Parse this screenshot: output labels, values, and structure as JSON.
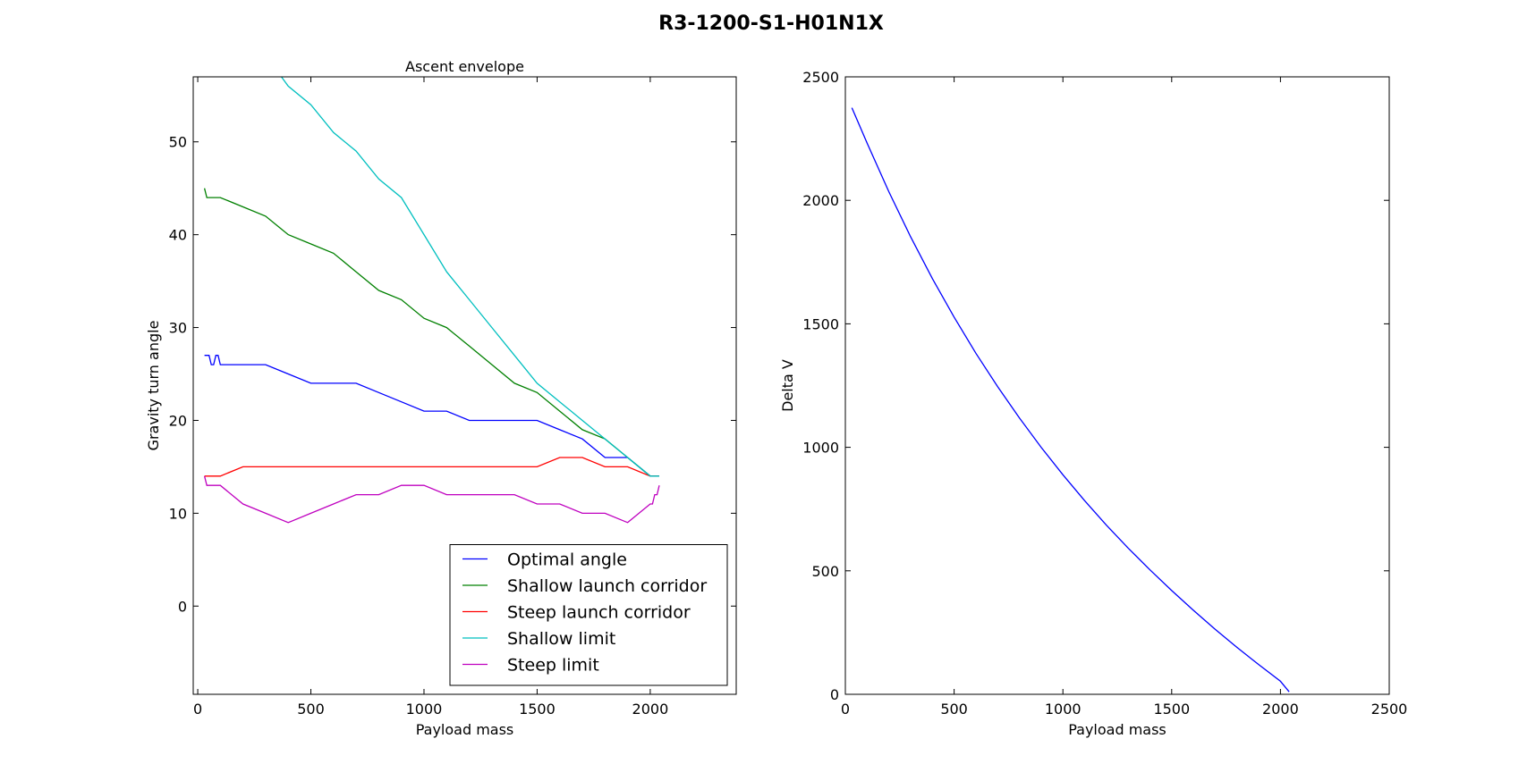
{
  "figure": {
    "title": "R3-1200-S1-H01N1X"
  },
  "chart_data": [
    {
      "type": "line",
      "title": "Ascent envelope",
      "xlabel": "Payload mass",
      "ylabel": "Gravity turn angle",
      "xlim": [
        -20,
        2380
      ],
      "ylim": [
        -9.5,
        57
      ],
      "xticks": [
        0,
        500,
        1000,
        1500,
        2000
      ],
      "yticks": [
        0,
        10,
        20,
        30,
        40,
        50
      ],
      "grid": false,
      "legend": "lower-right",
      "series": [
        {
          "name": "Optimal angle",
          "color": "#0000ff",
          "x": [
            30,
            50,
            60,
            70,
            80,
            90,
            100,
            200,
            300,
            400,
            500,
            600,
            700,
            800,
            900,
            1000,
            1100,
            1200,
            1300,
            1400,
            1500,
            1600,
            1700,
            1800,
            1900,
            2000,
            2040
          ],
          "y": [
            27,
            27,
            26,
            26,
            27,
            27,
            26,
            26,
            26,
            25,
            24,
            24,
            24,
            23,
            22,
            21,
            21,
            20,
            20,
            20,
            20,
            19,
            18,
            16,
            16,
            14,
            14
          ]
        },
        {
          "name": "Shallow launch corridor",
          "color": "#008000",
          "x": [
            30,
            40,
            100,
            200,
            300,
            400,
            500,
            600,
            700,
            800,
            900,
            1000,
            1100,
            1200,
            1300,
            1400,
            1500,
            1600,
            1700,
            1800,
            1900,
            2000,
            2040
          ],
          "y": [
            45,
            44,
            44,
            43,
            42,
            40,
            39,
            38,
            36,
            34,
            33,
            31,
            30,
            28,
            26,
            24,
            23,
            21,
            19,
            18,
            16,
            14,
            14
          ]
        },
        {
          "name": "Steep launch corridor",
          "color": "#ff0000",
          "x": [
            30,
            100,
            200,
            300,
            400,
            500,
            600,
            700,
            800,
            900,
            1000,
            1100,
            1200,
            1300,
            1400,
            1500,
            1600,
            1700,
            1800,
            1900,
            2000,
            2040
          ],
          "y": [
            14,
            14,
            15,
            15,
            15,
            15,
            15,
            15,
            15,
            15,
            15,
            15,
            15,
            15,
            15,
            15,
            16,
            16,
            15,
            15,
            14,
            14
          ]
        },
        {
          "name": "Shallow limit",
          "color": "#00bfbf",
          "x": [
            370,
            400,
            500,
            600,
            700,
            800,
            900,
            1000,
            1100,
            1200,
            1300,
            1400,
            1500,
            1600,
            1700,
            1800,
            1900,
            2000,
            2040
          ],
          "y": [
            57,
            56,
            54,
            51,
            49,
            46,
            44,
            40,
            36,
            33,
            30,
            27,
            24,
            22,
            20,
            18,
            16,
            14,
            14
          ]
        },
        {
          "name": "Steep limit",
          "color": "#bf00bf",
          "x": [
            30,
            40,
            100,
            200,
            300,
            400,
            500,
            600,
            700,
            800,
            900,
            1000,
            1100,
            1200,
            1300,
            1400,
            1500,
            1600,
            1700,
            1800,
            1900,
            2000,
            2010,
            2020,
            2030,
            2040
          ],
          "y": [
            14,
            13,
            13,
            11,
            10,
            9,
            10,
            11,
            12,
            12,
            13,
            13,
            12,
            12,
            12,
            12,
            11,
            11,
            10,
            10,
            9,
            11,
            11,
            12,
            12,
            13
          ]
        }
      ]
    },
    {
      "type": "line",
      "title": "",
      "xlabel": "Payload mass",
      "ylabel": "Delta V",
      "xlim": [
        0,
        2500
      ],
      "ylim": [
        0,
        2500
      ],
      "xticks": [
        0,
        500,
        1000,
        1500,
        2000,
        2500
      ],
      "yticks": [
        0,
        500,
        1000,
        1500,
        2000,
        2500
      ],
      "grid": false,
      "series": [
        {
          "color": "#0000ff",
          "x": [
            30,
            100,
            200,
            300,
            400,
            500,
            600,
            700,
            800,
            900,
            1000,
            1100,
            1200,
            1300,
            1400,
            1500,
            1600,
            1700,
            1800,
            1900,
            2000,
            2040
          ],
          "y": [
            2375,
            2232,
            2035,
            1852,
            1683,
            1527,
            1381,
            1246,
            1119,
            1000,
            889,
            784,
            685,
            592,
            504,
            420,
            340,
            263,
            190,
            120,
            53,
            10
          ]
        }
      ]
    }
  ]
}
